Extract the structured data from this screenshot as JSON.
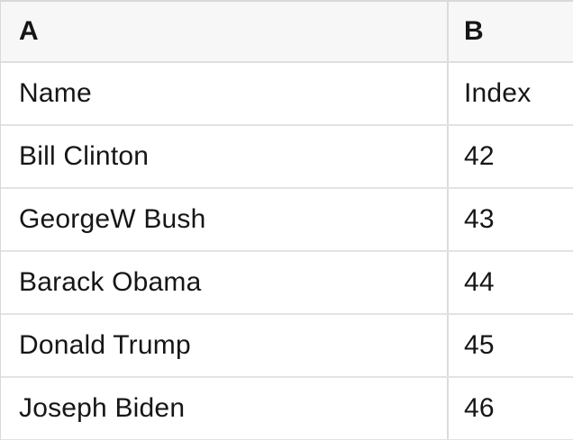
{
  "table": {
    "column_headers": [
      "A",
      "B"
    ],
    "rows": [
      [
        "Name",
        "Index"
      ],
      [
        "Bill Clinton",
        42
      ],
      [
        "GeorgeW Bush",
        43
      ],
      [
        "Barack Obama",
        44
      ],
      [
        "Donald Trump",
        45
      ],
      [
        "Joseph Biden",
        46
      ]
    ]
  },
  "colors": {
    "header_bg": "#f7f7f7",
    "outer_border": "#d9d9d9",
    "column_divider": "#dcdcdc",
    "row_divider": "#e3e3e3",
    "text": "#161616",
    "background": "#ffffff"
  }
}
